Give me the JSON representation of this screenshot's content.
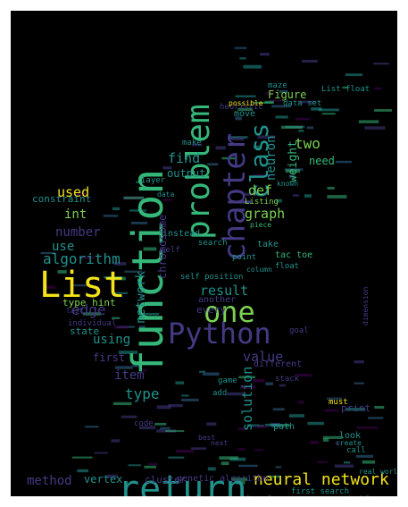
{
  "palette": {
    "background": "#000000",
    "frame": "#ffffff",
    "yellow": "#f2e31a",
    "light_green": "#7ad151",
    "green": "#35b779",
    "teal": "#21918c",
    "blue": "#31688e",
    "indigo": "#443a83",
    "purple": "#440154"
  },
  "words": [
    "function",
    "return",
    "Python",
    "List",
    "problem",
    "chapter",
    "one",
    "class",
    "neural network",
    "algorithm",
    "edge",
    "value",
    "result",
    "number",
    "use",
    "used",
    "int",
    "type",
    "item",
    "using",
    "solution",
    "neuron",
    "def",
    "graph",
    "find",
    "output",
    "two",
    "weight",
    "Figure",
    "method",
    "vertex",
    "book",
    "Variable",
    "distance",
    "example",
    "type hint",
    "state",
    "first",
    "genetic algorithm",
    "cluster",
    "city graph2",
    "add_edge_by_vertices",
    "Technique",
    "first search",
    "data set",
    "List float",
    "need",
    "Listing",
    "piece",
    "tac toe",
    "float",
    "point",
    "take",
    "search",
    "self position",
    "instead",
    "chromosome",
    "network",
    "every",
    "another",
    "layer",
    "data",
    "move",
    "heuristic",
    "maze",
    "make",
    "constraint",
    "possible",
    "known",
    "column",
    "self",
    "print",
    "goal",
    "path",
    "look",
    "create",
    "must",
    "game",
    "add",
    "code",
    "next",
    "best",
    "different",
    "individual",
    "last",
    "stack",
    "dimension",
    "real world",
    "call"
  ]
}
